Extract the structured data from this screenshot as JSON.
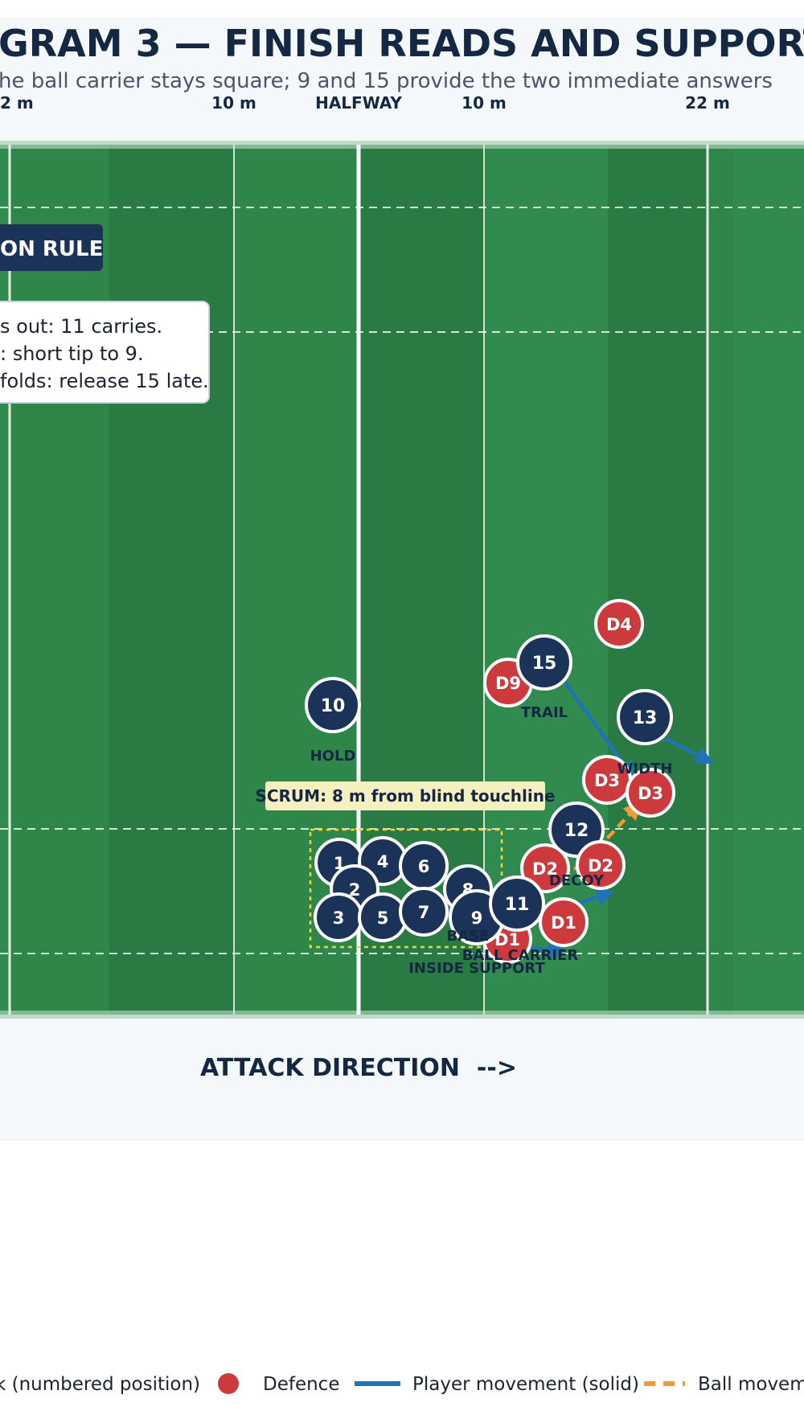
{
  "header": {
    "title": "GRAM 3 — FINISH READS AND SUPPORT",
    "subtitle": "he ball carrier stays square; 9 and 15 provide the two immediate answers"
  },
  "field": {
    "line_labels": [
      "2 m",
      "10 m",
      "HALFWAY",
      "10 m",
      "22 m"
    ]
  },
  "decision_rule": {
    "title": "ON RULE",
    "lines": [
      "s out: 11 carries.",
      ": short tip to 9.",
      "folds: release 15 late."
    ]
  },
  "scrum_label": "SCRUM: 8 m from blind touchline",
  "attack_players": [
    "10",
    "15",
    "13",
    "12",
    "1",
    "4",
    "6",
    "2",
    "8",
    "3",
    "5",
    "7",
    "9",
    "11"
  ],
  "defence_players": [
    "D4",
    "D9",
    "D3",
    "D3",
    "D2",
    "D2",
    "D1",
    "D1"
  ],
  "role_labels": {
    "hold": "HOLD",
    "trail": "TRAIL",
    "width": "WIDTH",
    "decoy": "DECOY",
    "base": "BASE",
    "ball_carrier": "BALL CARRIER",
    "inside_support": "INSIDE SUPPORT"
  },
  "attack_direction": "ATTACK DIRECTION  -->",
  "legend": [
    {
      "label": "k (numbered position)",
      "symbol": "attack-dot"
    },
    {
      "label": "Defence",
      "symbol": "defence-dot"
    },
    {
      "label": "Player movement (solid)",
      "symbol": "solid-line"
    },
    {
      "label": "Ball moveme",
      "symbol": "dashed-line"
    }
  ],
  "colors": {
    "attack": "#1b3358",
    "defence": "#cc3a3e",
    "player_movement": "#1f74b8",
    "ball_movement": "#f29a36",
    "pitch_dark": "#2a7a43",
    "pitch_light": "#318a4e",
    "scrum_box": "#f2d43a"
  }
}
